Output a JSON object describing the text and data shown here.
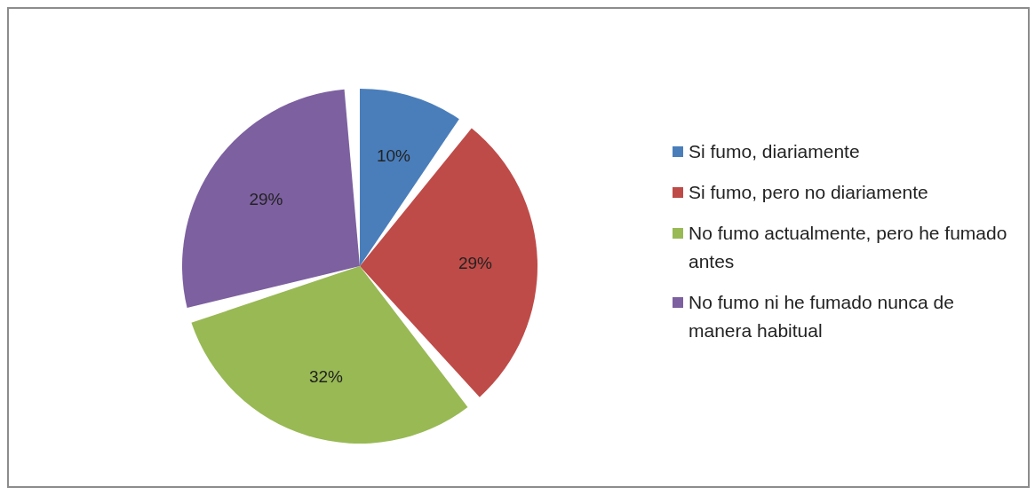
{
  "chart_data": {
    "type": "pie",
    "categories": [
      "Si fumo, diariamente",
      "Si fumo, pero no diariamente",
      "No fumo actualmente, pero he fumado antes",
      "No fumo ni he fumado nunca de manera habitual"
    ],
    "values": [
      10,
      29,
      32,
      29
    ],
    "colors": [
      "#4a7ebb",
      "#be4b48",
      "#98b954",
      "#7d60a0"
    ],
    "value_labels": [
      "10%",
      "29%",
      "32%",
      "29%"
    ],
    "legend": "right"
  }
}
